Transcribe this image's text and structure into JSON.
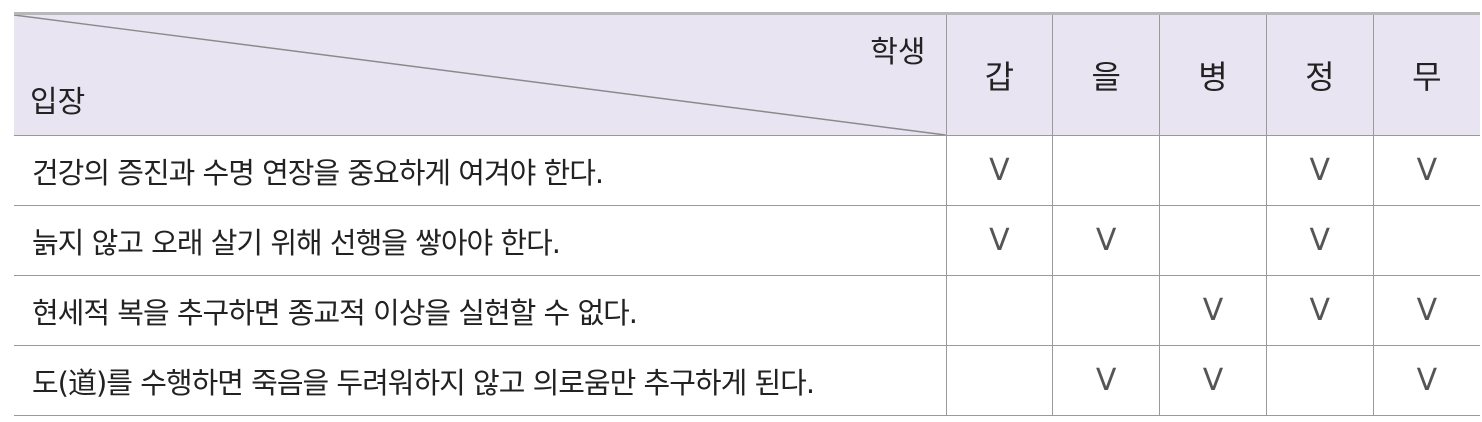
{
  "header": {
    "corner_top": "학생",
    "corner_bottom": "입장",
    "students": [
      "갑",
      "을",
      "병",
      "정",
      "무"
    ]
  },
  "rows": [
    {
      "stance": "건강의 증진과 수명 연장을 중요하게 여겨야 한다.",
      "marks": [
        "V",
        "",
        "",
        "V",
        "V"
      ]
    },
    {
      "stance": "늙지 않고 오래 살기 위해 선행을 쌓아야 한다.",
      "marks": [
        "V",
        "V",
        "",
        "V",
        ""
      ]
    },
    {
      "stance": "현세적 복을 추구하면 종교적 이상을 실현할 수 없다.",
      "marks": [
        "",
        "",
        "V",
        "V",
        "V"
      ]
    },
    {
      "stance": "도(道)를 수행하면 죽음을 두려워하지 않고 의로움만 추구하게 된다.",
      "marks": [
        "",
        "V",
        "V",
        "",
        "V"
      ]
    }
  ]
}
